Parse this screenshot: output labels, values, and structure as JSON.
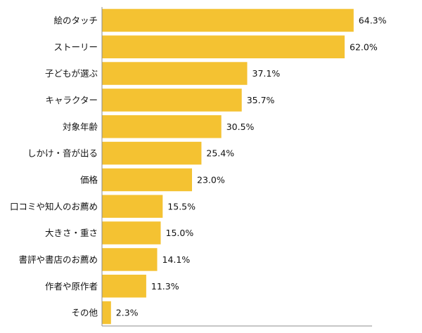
{
  "chart_data": {
    "type": "bar",
    "orientation": "horizontal",
    "title": "",
    "xlabel": "",
    "ylabel": "",
    "xlim": [
      0,
      69
    ],
    "grid": false,
    "legend": "none",
    "value_suffix": "%",
    "bar_color": "#F4C232",
    "axis_color": "#8C8C8C",
    "categories": [
      "絵のタッチ",
      "ストーリー",
      "子どもが選ぶ",
      "キャラクター",
      "対象年齢",
      "しかけ・音が出る",
      "価格",
      "口コミや知人のお薦め",
      "大きさ・重さ",
      "書評や書店のお薦め",
      "作者や原作者",
      "その他"
    ],
    "values": [
      64.3,
      62.0,
      37.1,
      35.7,
      30.5,
      25.4,
      23.0,
      15.5,
      15.0,
      14.1,
      11.3,
      2.3
    ],
    "value_labels": [
      "64.3%",
      "62.0%",
      "37.1%",
      "35.7%",
      "30.5%",
      "25.4%",
      "23.0%",
      "15.5%",
      "15.0%",
      "14.1%",
      "11.3%",
      "2.3%"
    ]
  }
}
